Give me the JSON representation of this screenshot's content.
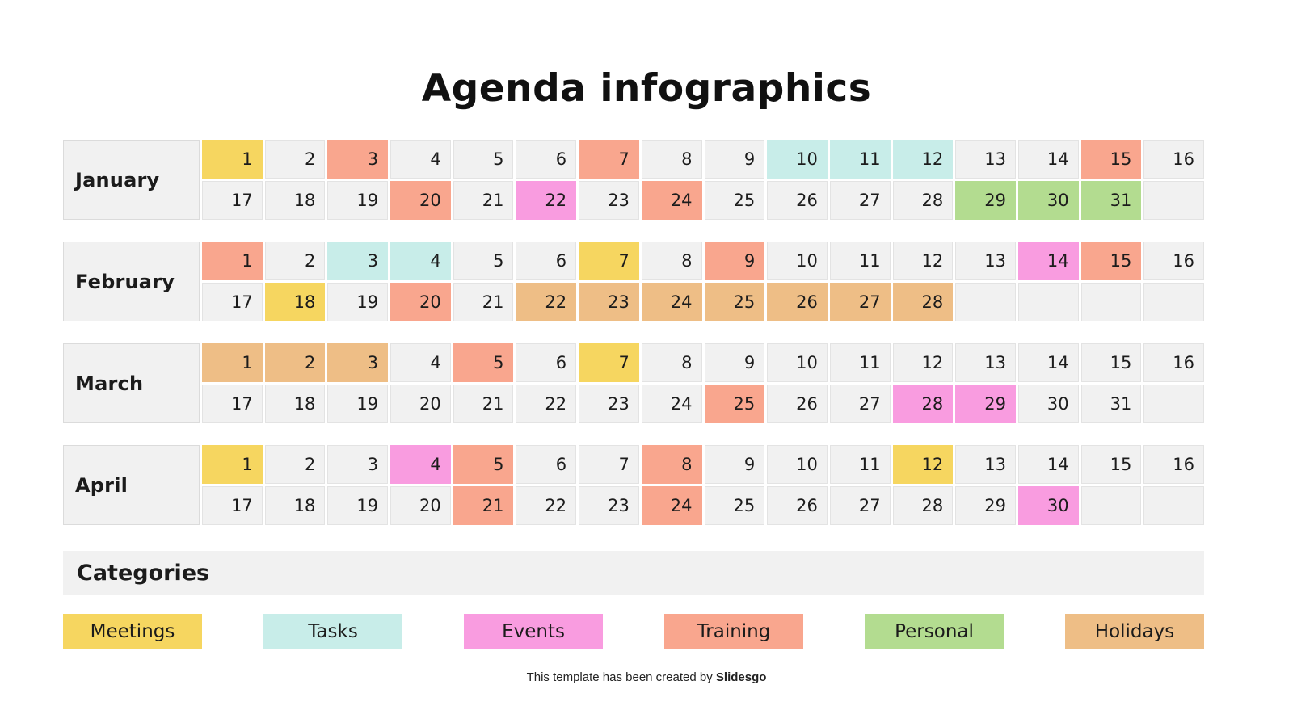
{
  "title": "Agenda infographics",
  "categories_header": "Categories",
  "footer": {
    "text": "This template has been created by ",
    "brand": "Slidesgo"
  },
  "palette": {
    "meetings": "#F6D660",
    "tasks": "#C8EDE9",
    "events": "#F99CE0",
    "training": "#F9A68E",
    "personal": "#B3DC90",
    "holidays": "#EEBE86",
    "cell_bg": "#F1F1F1",
    "cell_border": "#E3E3E3"
  },
  "legend": [
    {
      "label": "Meetings",
      "category": "meetings"
    },
    {
      "label": "Tasks",
      "category": "tasks"
    },
    {
      "label": "Events",
      "category": "events"
    },
    {
      "label": "Training",
      "category": "training"
    },
    {
      "label": "Personal",
      "category": "personal"
    },
    {
      "label": "Holidays",
      "category": "holidays"
    }
  ],
  "months": [
    {
      "name": "January",
      "rows": [
        [
          {
            "day": "1",
            "cat": "meetings"
          },
          {
            "day": "2"
          },
          {
            "day": "3",
            "cat": "training"
          },
          {
            "day": "4"
          },
          {
            "day": "5"
          },
          {
            "day": "6"
          },
          {
            "day": "7",
            "cat": "training"
          },
          {
            "day": "8"
          },
          {
            "day": "9"
          },
          {
            "day": "10",
            "cat": "tasks"
          },
          {
            "day": "11",
            "cat": "tasks"
          },
          {
            "day": "12",
            "cat": "tasks"
          },
          {
            "day": "13"
          },
          {
            "day": "14"
          },
          {
            "day": "15",
            "cat": "training"
          },
          {
            "day": "16"
          }
        ],
        [
          {
            "day": "17"
          },
          {
            "day": "18"
          },
          {
            "day": "19"
          },
          {
            "day": "20",
            "cat": "training"
          },
          {
            "day": "21"
          },
          {
            "day": "22",
            "cat": "events"
          },
          {
            "day": "23"
          },
          {
            "day": "24",
            "cat": "training"
          },
          {
            "day": "25"
          },
          {
            "day": "26"
          },
          {
            "day": "27"
          },
          {
            "day": "28"
          },
          {
            "day": "29",
            "cat": "personal"
          },
          {
            "day": "30",
            "cat": "personal"
          },
          {
            "day": "31",
            "cat": "personal"
          },
          {
            "day": ""
          }
        ]
      ]
    },
    {
      "name": "February",
      "rows": [
        [
          {
            "day": "1",
            "cat": "training"
          },
          {
            "day": "2"
          },
          {
            "day": "3",
            "cat": "tasks"
          },
          {
            "day": "4",
            "cat": "tasks"
          },
          {
            "day": "5"
          },
          {
            "day": "6"
          },
          {
            "day": "7",
            "cat": "meetings"
          },
          {
            "day": "8"
          },
          {
            "day": "9",
            "cat": "training"
          },
          {
            "day": "10"
          },
          {
            "day": "11"
          },
          {
            "day": "12"
          },
          {
            "day": "13"
          },
          {
            "day": "14",
            "cat": "events"
          },
          {
            "day": "15",
            "cat": "training"
          },
          {
            "day": "16"
          }
        ],
        [
          {
            "day": "17"
          },
          {
            "day": "18",
            "cat": "meetings"
          },
          {
            "day": "19"
          },
          {
            "day": "20",
            "cat": "training"
          },
          {
            "day": "21"
          },
          {
            "day": "22",
            "cat": "holidays"
          },
          {
            "day": "23",
            "cat": "holidays"
          },
          {
            "day": "24",
            "cat": "holidays"
          },
          {
            "day": "25",
            "cat": "holidays"
          },
          {
            "day": "26",
            "cat": "holidays"
          },
          {
            "day": "27",
            "cat": "holidays"
          },
          {
            "day": "28",
            "cat": "holidays"
          },
          {
            "day": ""
          },
          {
            "day": ""
          },
          {
            "day": ""
          },
          {
            "day": ""
          }
        ]
      ]
    },
    {
      "name": "March",
      "rows": [
        [
          {
            "day": "1",
            "cat": "holidays"
          },
          {
            "day": "2",
            "cat": "holidays"
          },
          {
            "day": "3",
            "cat": "holidays"
          },
          {
            "day": "4"
          },
          {
            "day": "5",
            "cat": "training"
          },
          {
            "day": "6"
          },
          {
            "day": "7",
            "cat": "meetings"
          },
          {
            "day": "8"
          },
          {
            "day": "9"
          },
          {
            "day": "10"
          },
          {
            "day": "11"
          },
          {
            "day": "12"
          },
          {
            "day": "13"
          },
          {
            "day": "14"
          },
          {
            "day": "15"
          },
          {
            "day": "16"
          }
        ],
        [
          {
            "day": "17"
          },
          {
            "day": "18"
          },
          {
            "day": "19"
          },
          {
            "day": "20"
          },
          {
            "day": "21"
          },
          {
            "day": "22"
          },
          {
            "day": "23"
          },
          {
            "day": "24"
          },
          {
            "day": "25",
            "cat": "training"
          },
          {
            "day": "26"
          },
          {
            "day": "27"
          },
          {
            "day": "28",
            "cat": "events"
          },
          {
            "day": "29",
            "cat": "events"
          },
          {
            "day": "30"
          },
          {
            "day": "31"
          },
          {
            "day": ""
          }
        ]
      ]
    },
    {
      "name": "April",
      "rows": [
        [
          {
            "day": "1",
            "cat": "meetings"
          },
          {
            "day": "2"
          },
          {
            "day": "3"
          },
          {
            "day": "4",
            "cat": "events"
          },
          {
            "day": "5",
            "cat": "training"
          },
          {
            "day": "6"
          },
          {
            "day": "7"
          },
          {
            "day": "8",
            "cat": "training"
          },
          {
            "day": "9"
          },
          {
            "day": "10"
          },
          {
            "day": "11"
          },
          {
            "day": "12",
            "cat": "meetings"
          },
          {
            "day": "13"
          },
          {
            "day": "14"
          },
          {
            "day": "15"
          },
          {
            "day": "16"
          }
        ],
        [
          {
            "day": "17"
          },
          {
            "day": "18"
          },
          {
            "day": "19"
          },
          {
            "day": "20"
          },
          {
            "day": "21",
            "cat": "training"
          },
          {
            "day": "22"
          },
          {
            "day": "23"
          },
          {
            "day": "24",
            "cat": "training"
          },
          {
            "day": "25"
          },
          {
            "day": "26"
          },
          {
            "day": "27"
          },
          {
            "day": "28"
          },
          {
            "day": "29"
          },
          {
            "day": "30",
            "cat": "events"
          },
          {
            "day": ""
          },
          {
            "day": ""
          }
        ]
      ]
    }
  ]
}
